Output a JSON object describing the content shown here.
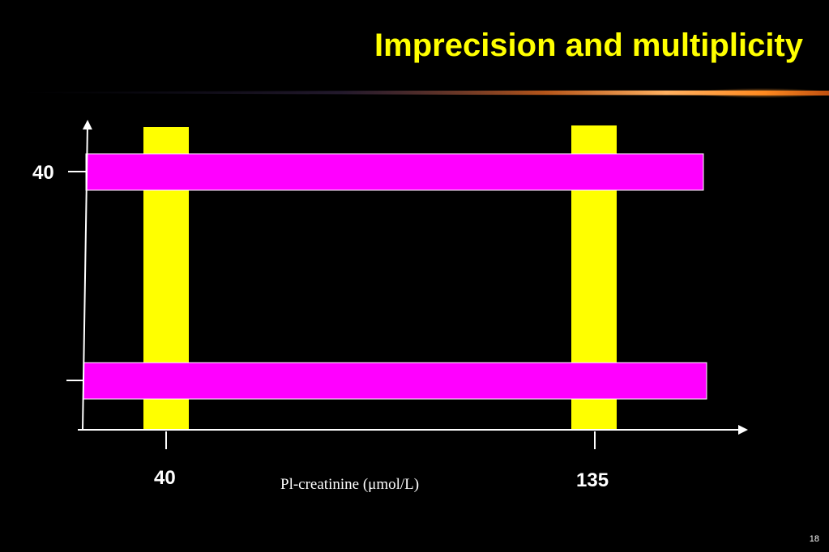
{
  "slide": {
    "title": "Imprecision and multiplicity",
    "slide_number": "18"
  },
  "diagram": {
    "y_tick_label": "40",
    "x_tick_labels": [
      "40",
      "135"
    ],
    "x_axis_label": "Pl-creatinine (μmol/L)"
  },
  "colors": {
    "title": "#ffff00",
    "vertical_bands": "#ffff00",
    "horizontal_bands": "#ff00ff",
    "axes": "#ffffff",
    "background": "#000000"
  }
}
